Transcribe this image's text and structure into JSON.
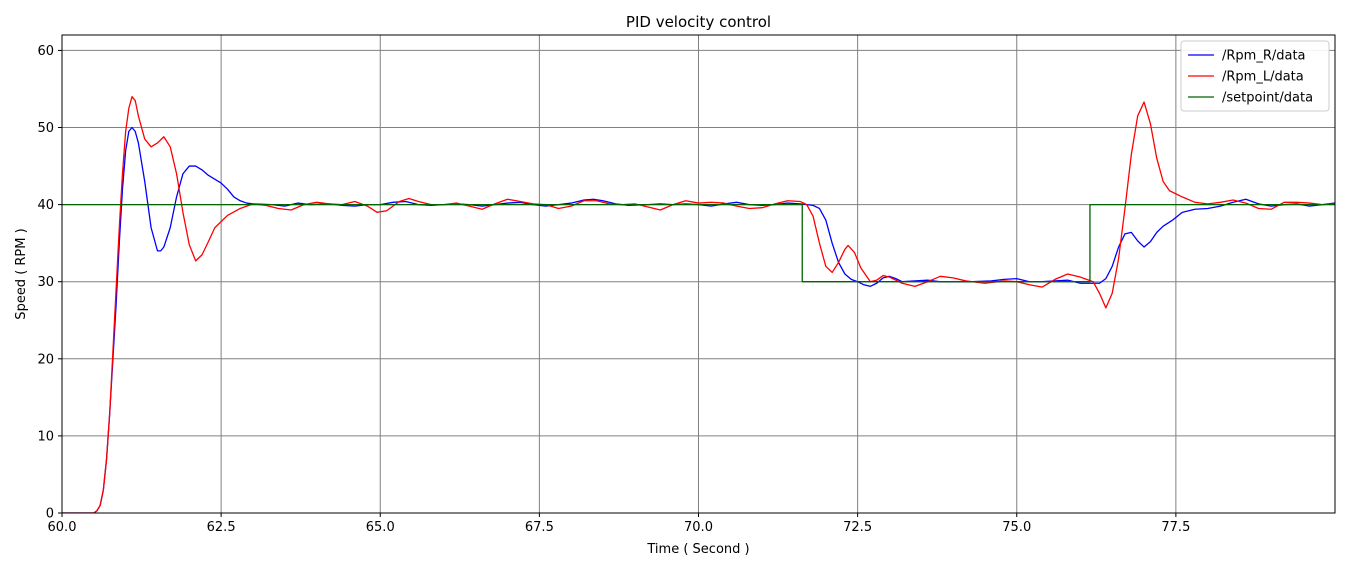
{
  "chart_data": {
    "type": "line",
    "title": "PID velocity control",
    "xlabel": "Time ( Second )",
    "ylabel": "Speed ( RPM )",
    "xlim": [
      60.0,
      80.0
    ],
    "ylim": [
      0,
      62
    ],
    "x_ticks": [
      60.0,
      62.5,
      65.0,
      67.5,
      70.0,
      72.5,
      75.0,
      77.5
    ],
    "x_tick_labels": [
      "60.0",
      "62.5",
      "65.0",
      "67.5",
      "70.0",
      "72.5",
      "75.0",
      "77.5"
    ],
    "y_ticks": [
      0,
      10,
      20,
      30,
      40,
      50,
      60
    ],
    "y_tick_labels": [
      "0",
      "10",
      "20",
      "30",
      "40",
      "50",
      "60"
    ],
    "grid": true,
    "legend_position": "top-right",
    "series": [
      {
        "name": "/Rpm_R/data",
        "color": "#0000ff",
        "points": [
          [
            60.0,
            0
          ],
          [
            60.5,
            0
          ],
          [
            60.55,
            0.3
          ],
          [
            60.6,
            1
          ],
          [
            60.65,
            3
          ],
          [
            60.7,
            7
          ],
          [
            60.75,
            13
          ],
          [
            60.8,
            20
          ],
          [
            60.85,
            27
          ],
          [
            60.9,
            35
          ],
          [
            60.95,
            42
          ],
          [
            61.0,
            47
          ],
          [
            61.05,
            49.5
          ],
          [
            61.1,
            50
          ],
          [
            61.15,
            49.5
          ],
          [
            61.2,
            48
          ],
          [
            61.3,
            43
          ],
          [
            61.4,
            37
          ],
          [
            61.5,
            34
          ],
          [
            61.55,
            34
          ],
          [
            61.6,
            34.5
          ],
          [
            61.7,
            37
          ],
          [
            61.8,
            41
          ],
          [
            61.9,
            44
          ],
          [
            62.0,
            45
          ],
          [
            62.1,
            45
          ],
          [
            62.2,
            44.5
          ],
          [
            62.3,
            43.8
          ],
          [
            62.5,
            42.8
          ],
          [
            62.6,
            42
          ],
          [
            62.7,
            41
          ],
          [
            62.8,
            40.5
          ],
          [
            62.9,
            40.2
          ],
          [
            63.0,
            40.1
          ],
          [
            63.3,
            40
          ],
          [
            63.5,
            39.8
          ],
          [
            63.7,
            40.2
          ],
          [
            63.9,
            40
          ],
          [
            64.2,
            40.1
          ],
          [
            64.4,
            39.9
          ],
          [
            64.6,
            39.8
          ],
          [
            64.8,
            40
          ],
          [
            65.0,
            40
          ],
          [
            65.2,
            40.3
          ],
          [
            65.4,
            40.4
          ],
          [
            65.6,
            40
          ],
          [
            65.8,
            39.9
          ],
          [
            66.0,
            40
          ],
          [
            66.2,
            40.1
          ],
          [
            66.4,
            40
          ],
          [
            66.6,
            39.8
          ],
          [
            66.8,
            40
          ],
          [
            67.0,
            40.2
          ],
          [
            67.2,
            40.3
          ],
          [
            67.4,
            40
          ],
          [
            67.6,
            39.8
          ],
          [
            67.8,
            40
          ],
          [
            68.0,
            40.2
          ],
          [
            68.2,
            40.6
          ],
          [
            68.35,
            40.7
          ],
          [
            68.5,
            40.5
          ],
          [
            68.7,
            40.1
          ],
          [
            68.9,
            39.9
          ],
          [
            69.2,
            40
          ],
          [
            69.4,
            40.1
          ],
          [
            69.6,
            40
          ],
          [
            69.8,
            40.1
          ],
          [
            70.0,
            40
          ],
          [
            70.2,
            39.8
          ],
          [
            70.4,
            40.1
          ],
          [
            70.6,
            40.3
          ],
          [
            70.8,
            40
          ],
          [
            71.0,
            39.9
          ],
          [
            71.2,
            40
          ],
          [
            71.4,
            40.2
          ],
          [
            71.6,
            40.1
          ],
          [
            71.8,
            39.9
          ],
          [
            71.9,
            39.5
          ],
          [
            72.0,
            38
          ],
          [
            72.1,
            35
          ],
          [
            72.2,
            32.5
          ],
          [
            72.3,
            31
          ],
          [
            72.4,
            30.3
          ],
          [
            72.5,
            30
          ],
          [
            72.6,
            29.6
          ],
          [
            72.7,
            29.4
          ],
          [
            72.8,
            29.8
          ],
          [
            72.9,
            30.5
          ],
          [
            73.0,
            30.7
          ],
          [
            73.1,
            30.4
          ],
          [
            73.2,
            30
          ],
          [
            73.4,
            30.1
          ],
          [
            73.6,
            30.2
          ],
          [
            73.8,
            30
          ],
          [
            74.0,
            30
          ],
          [
            74.3,
            30
          ],
          [
            74.6,
            30.1
          ],
          [
            74.8,
            30.3
          ],
          [
            75.0,
            30.4
          ],
          [
            75.2,
            30
          ],
          [
            75.4,
            30
          ],
          [
            75.6,
            30.1
          ],
          [
            75.8,
            30.2
          ],
          [
            76.0,
            29.8
          ],
          [
            76.2,
            29.8
          ],
          [
            76.3,
            29.8
          ],
          [
            76.4,
            30.4
          ],
          [
            76.5,
            32
          ],
          [
            76.6,
            34.5
          ],
          [
            76.7,
            36.2
          ],
          [
            76.8,
            36.4
          ],
          [
            76.9,
            35.3
          ],
          [
            77.0,
            34.5
          ],
          [
            77.1,
            35.2
          ],
          [
            77.2,
            36.4
          ],
          [
            77.3,
            37.2
          ],
          [
            77.45,
            38
          ],
          [
            77.6,
            39
          ],
          [
            77.8,
            39.4
          ],
          [
            78.0,
            39.5
          ],
          [
            78.2,
            39.8
          ],
          [
            78.4,
            40.3
          ],
          [
            78.6,
            40.7
          ],
          [
            78.8,
            40.1
          ],
          [
            79.0,
            39.8
          ],
          [
            79.2,
            40
          ],
          [
            79.4,
            40.1
          ],
          [
            79.6,
            39.8
          ],
          [
            79.8,
            40
          ],
          [
            80.0,
            40.2
          ]
        ]
      },
      {
        "name": "/Rpm_L/data",
        "color": "#ff0000",
        "points": [
          [
            60.0,
            0
          ],
          [
            60.5,
            0
          ],
          [
            60.55,
            0.3
          ],
          [
            60.6,
            1
          ],
          [
            60.65,
            3
          ],
          [
            60.7,
            7
          ],
          [
            60.75,
            13
          ],
          [
            60.8,
            21
          ],
          [
            60.85,
            29
          ],
          [
            60.9,
            37
          ],
          [
            60.95,
            44
          ],
          [
            61.0,
            49.5
          ],
          [
            61.05,
            52.5
          ],
          [
            61.1,
            54
          ],
          [
            61.15,
            53.5
          ],
          [
            61.2,
            51.5
          ],
          [
            61.3,
            48.5
          ],
          [
            61.4,
            47.5
          ],
          [
            61.5,
            48
          ],
          [
            61.6,
            48.8
          ],
          [
            61.7,
            47.5
          ],
          [
            61.8,
            44
          ],
          [
            61.9,
            39
          ],
          [
            62.0,
            34.8
          ],
          [
            62.1,
            32.7
          ],
          [
            62.2,
            33.5
          ],
          [
            62.3,
            35.2
          ],
          [
            62.4,
            37
          ],
          [
            62.6,
            38.6
          ],
          [
            62.8,
            39.5
          ],
          [
            63.0,
            40.1
          ],
          [
            63.2,
            39.9
          ],
          [
            63.4,
            39.5
          ],
          [
            63.6,
            39.3
          ],
          [
            63.8,
            40
          ],
          [
            64.0,
            40.3
          ],
          [
            64.2,
            40.1
          ],
          [
            64.4,
            40
          ],
          [
            64.6,
            40.4
          ],
          [
            64.8,
            39.8
          ],
          [
            64.95,
            39
          ],
          [
            65.1,
            39.2
          ],
          [
            65.3,
            40.4
          ],
          [
            65.45,
            40.8
          ],
          [
            65.6,
            40.4
          ],
          [
            65.8,
            40
          ],
          [
            66.0,
            40
          ],
          [
            66.2,
            40.2
          ],
          [
            66.4,
            39.8
          ],
          [
            66.6,
            39.4
          ],
          [
            66.8,
            40.1
          ],
          [
            67.0,
            40.7
          ],
          [
            67.2,
            40.4
          ],
          [
            67.4,
            40.1
          ],
          [
            67.6,
            40
          ],
          [
            67.8,
            39.5
          ],
          [
            68.0,
            39.8
          ],
          [
            68.2,
            40.5
          ],
          [
            68.4,
            40.5
          ],
          [
            68.6,
            40.1
          ],
          [
            68.8,
            40
          ],
          [
            69.0,
            40.1
          ],
          [
            69.2,
            39.7
          ],
          [
            69.4,
            39.3
          ],
          [
            69.6,
            40
          ],
          [
            69.8,
            40.5
          ],
          [
            70.0,
            40.2
          ],
          [
            70.2,
            40.3
          ],
          [
            70.4,
            40.2
          ],
          [
            70.6,
            39.8
          ],
          [
            70.8,
            39.5
          ],
          [
            71.0,
            39.6
          ],
          [
            71.2,
            40.1
          ],
          [
            71.4,
            40.5
          ],
          [
            71.6,
            40.4
          ],
          [
            71.7,
            40
          ],
          [
            71.8,
            38.5
          ],
          [
            71.9,
            35
          ],
          [
            72.0,
            32
          ],
          [
            72.1,
            31.2
          ],
          [
            72.2,
            32.5
          ],
          [
            72.3,
            34.2
          ],
          [
            72.35,
            34.7
          ],
          [
            72.45,
            33.8
          ],
          [
            72.55,
            31.8
          ],
          [
            72.7,
            30
          ],
          [
            72.8,
            30.2
          ],
          [
            72.9,
            30.8
          ],
          [
            73.0,
            30.6
          ],
          [
            73.2,
            29.8
          ],
          [
            73.4,
            29.4
          ],
          [
            73.6,
            30
          ],
          [
            73.8,
            30.7
          ],
          [
            74.0,
            30.5
          ],
          [
            74.2,
            30.1
          ],
          [
            74.5,
            29.8
          ],
          [
            74.8,
            30.1
          ],
          [
            75.0,
            30
          ],
          [
            75.2,
            29.6
          ],
          [
            75.4,
            29.3
          ],
          [
            75.6,
            30.3
          ],
          [
            75.8,
            31
          ],
          [
            76.0,
            30.6
          ],
          [
            76.2,
            30
          ],
          [
            76.3,
            28.5
          ],
          [
            76.4,
            26.6
          ],
          [
            76.5,
            28.5
          ],
          [
            76.6,
            33
          ],
          [
            76.7,
            39.5
          ],
          [
            76.8,
            46.5
          ],
          [
            76.9,
            51.5
          ],
          [
            77.0,
            53.3
          ],
          [
            77.1,
            50.5
          ],
          [
            77.2,
            46
          ],
          [
            77.3,
            43
          ],
          [
            77.4,
            41.8
          ],
          [
            77.6,
            41
          ],
          [
            77.8,
            40.3
          ],
          [
            78.0,
            40.1
          ],
          [
            78.2,
            40.3
          ],
          [
            78.4,
            40.6
          ],
          [
            78.6,
            40.2
          ],
          [
            78.8,
            39.5
          ],
          [
            79.0,
            39.4
          ],
          [
            79.2,
            40.3
          ],
          [
            79.4,
            40.3
          ],
          [
            79.6,
            40.2
          ],
          [
            79.8,
            40
          ],
          [
            80.0,
            40.1
          ]
        ]
      },
      {
        "name": "/setpoint/data",
        "color": "#006400",
        "points": [
          [
            60.0,
            40
          ],
          [
            71.63,
            40
          ],
          [
            71.63,
            30
          ],
          [
            76.15,
            30
          ],
          [
            76.15,
            40
          ],
          [
            80.0,
            40
          ]
        ]
      }
    ]
  }
}
